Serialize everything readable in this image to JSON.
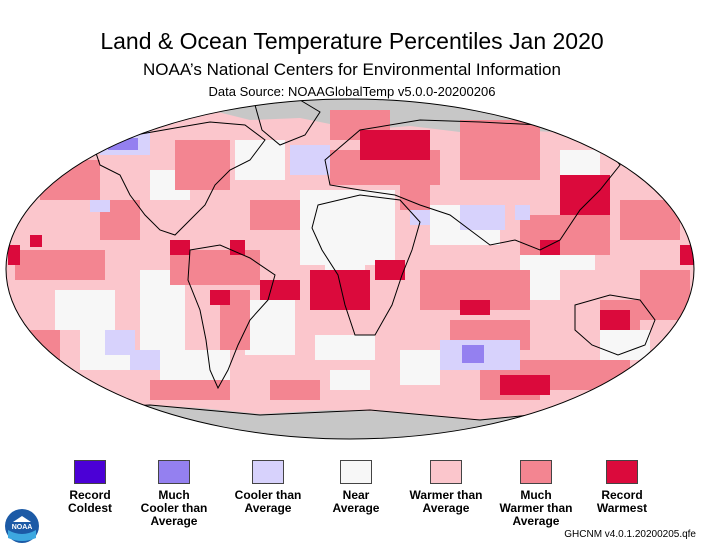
{
  "title": "Land & Ocean Temperature Percentiles Jan 2020",
  "subtitle": "NOAA’s National Centers for Environmental Information",
  "data_source": "Data Source: NOAAGlobalTemp v5.0.0-20200206",
  "footer_credit": "GHCNM v4.0.1.20200205.qfe",
  "logo_text": "NOAA",
  "legend": [
    {
      "label_line1": "Record",
      "label_line2": "Coldest",
      "label_line3": "",
      "color": "#4b00d6"
    },
    {
      "label_line1": "Much",
      "label_line2": "Cooler than",
      "label_line3": "Average",
      "color": "#9480f0"
    },
    {
      "label_line1": "Cooler than",
      "label_line2": "Average",
      "label_line3": "",
      "color": "#d7d2fc"
    },
    {
      "label_line1": "Near",
      "label_line2": "Average",
      "label_line3": "",
      "color": "#f7f7f7"
    },
    {
      "label_line1": "Warmer than",
      "label_line2": "Average",
      "label_line3": "",
      "color": "#fbc6cc"
    },
    {
      "label_line1": "Much",
      "label_line2": "Warmer than",
      "label_line3": "Average",
      "color": "#f38591"
    },
    {
      "label_line1": "Record",
      "label_line2": "Warmest",
      "label_line3": "",
      "color": "#db0a3c"
    }
  ],
  "colors": {
    "no_data": "#c7c7c7",
    "record_coldest": "#4b00d6",
    "much_cooler": "#9480f0",
    "cooler": "#d7d2fc",
    "near": "#f7f7f7",
    "warmer": "#fbc6cc",
    "much_warmer": "#f38591",
    "record_warmest": "#db0a3c"
  }
}
